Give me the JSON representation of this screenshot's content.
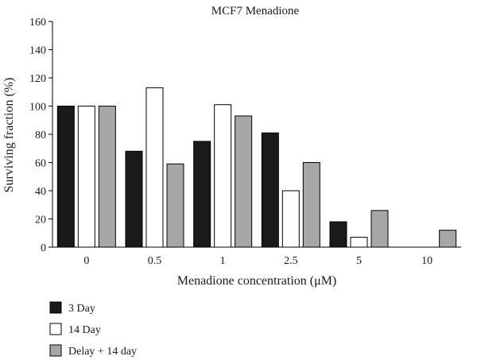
{
  "chart_data": {
    "type": "bar",
    "title": "MCF7 Menadione",
    "xlabel": "Menadione concentration (μM)",
    "ylabel": "Surviving fraction (%)",
    "categories": [
      "0",
      "0.5",
      "1",
      "2.5",
      "5",
      "10"
    ],
    "ylim": [
      0,
      160
    ],
    "yticks": [
      0,
      20,
      40,
      60,
      80,
      100,
      120,
      140,
      160
    ],
    "grid": false,
    "legend_position": "bottom-left",
    "series": [
      {
        "name": "3 Day",
        "color": "#1a1a1a",
        "values": [
          100,
          68,
          75,
          81,
          18,
          0
        ]
      },
      {
        "name": "14 Day",
        "color": "#ffffff",
        "values": [
          100,
          113,
          101,
          40,
          7,
          0
        ]
      },
      {
        "name": "Delay + 14 day",
        "color": "#a6a6a6",
        "values": [
          100,
          59,
          93,
          60,
          26,
          12
        ]
      }
    ]
  }
}
